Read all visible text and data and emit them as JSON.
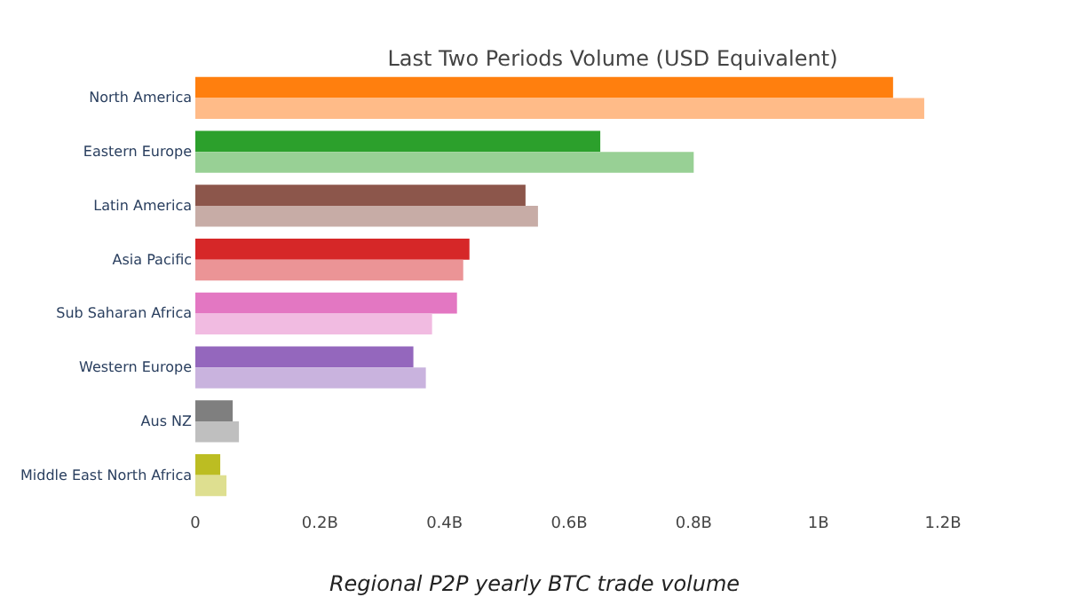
{
  "chart_data": {
    "type": "bar",
    "orientation": "horizontal",
    "title": "Last Two Periods Volume (USD Equivalent)",
    "annotations": [
      "Regional P2P yearly BTC trade volume"
    ],
    "categories": [
      "North America",
      "Eastern Europe",
      "Latin America",
      "Asia Pacific",
      "Sub Saharan Africa",
      "Western Europe",
      "Aus NZ",
      "Middle East North Africa"
    ],
    "series": [
      {
        "colors": [
          "#ff7f0e",
          "#2ca02c",
          "#8c564b",
          "#d62728",
          "#e377c2",
          "#9467bd",
          "#7f7f7f",
          "#bcbd22"
        ],
        "values": [
          1.12,
          0.65,
          0.53,
          0.44,
          0.42,
          0.35,
          0.06,
          0.04
        ]
      },
      {
        "colors": [
          "#ffbb88",
          "#98d095",
          "#c7aca6",
          "#eb9496",
          "#f1bbe1",
          "#c9b3de",
          "#bfbfbf",
          "#dedf90"
        ],
        "values": [
          1.17,
          0.8,
          0.55,
          0.43,
          0.38,
          0.37,
          0.07,
          0.05
        ]
      }
    ],
    "xlim": [
      0,
      1.2
    ],
    "xticks": [
      0,
      {
        "value": 0.2,
        "label": "0.2B"
      },
      {
        "value": 0.4,
        "label": "0.4B"
      },
      {
        "value": 0.6,
        "label": "0.6B"
      },
      {
        "value": 0.8,
        "label": "0.8B"
      },
      {
        "value": 1,
        "label": "1B"
      },
      {
        "value": 1.2,
        "label": "1.2B"
      }
    ],
    "grid": false
  }
}
